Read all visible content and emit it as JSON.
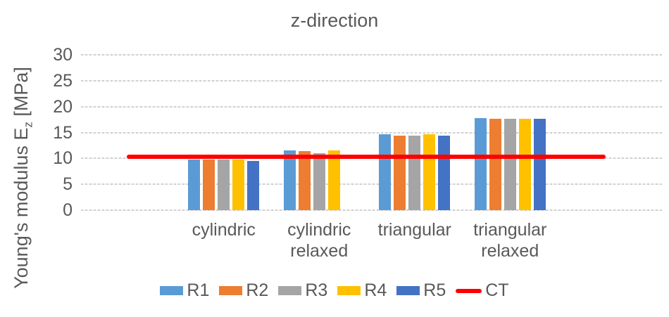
{
  "chart_data": {
    "type": "bar",
    "title": "z-direction",
    "ylabel_prefix": "Young's modulus E",
    "ylabel_sub": "z",
    "ylabel_suffix": " [MPa]",
    "ylim": [
      0,
      30
    ],
    "yticks": [
      0,
      5,
      10,
      15,
      20,
      25,
      30
    ],
    "grid": true,
    "legend_position": "bottom",
    "text_color": "#595959",
    "grid_color": "#D9D9D9",
    "categories": [
      "cylindric",
      "cylindric relaxed",
      "triangular",
      "triangular relaxed"
    ],
    "series": [
      {
        "name": "R1",
        "color": "#5B9BD5",
        "values": [
          9.8,
          11.5,
          14.7,
          17.8
        ]
      },
      {
        "name": "R2",
        "color": "#ED7D31",
        "values": [
          9.8,
          11.4,
          14.4,
          17.7
        ]
      },
      {
        "name": "R3",
        "color": "#A5A5A5",
        "values": [
          9.8,
          11.0,
          14.4,
          17.6
        ]
      },
      {
        "name": "R4",
        "color": "#FFC000",
        "values": [
          9.8,
          11.5,
          14.6,
          17.7
        ]
      },
      {
        "name": "R5",
        "color": "#4472C4",
        "values": [
          9.5,
          null,
          14.4,
          17.6
        ]
      }
    ],
    "ref_line": {
      "name": "CT",
      "color": "#FF0000",
      "value": 10.3
    }
  }
}
